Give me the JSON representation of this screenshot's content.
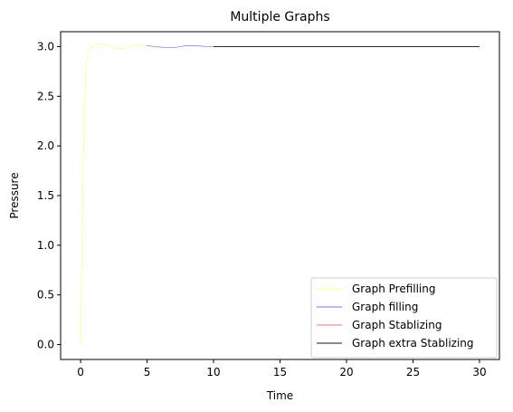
{
  "chart_data": {
    "type": "line",
    "title": "Multiple Graphs",
    "xlabel": "Time",
    "ylabel": "Pressure",
    "xlim": [
      -1.5,
      31.5
    ],
    "ylim": [
      -0.15,
      3.15
    ],
    "x_ticks": [
      0,
      5,
      10,
      15,
      20,
      25,
      30
    ],
    "x_tick_labels": [
      "0",
      "5",
      "10",
      "15",
      "20",
      "25",
      "30"
    ],
    "y_ticks": [
      0.0,
      0.5,
      1.0,
      1.5,
      2.0,
      2.5,
      3.0
    ],
    "y_tick_labels": [
      "0.0",
      "0.5",
      "1.0",
      "1.5",
      "2.0",
      "2.5",
      "3.0"
    ],
    "grid": false,
    "legend_position": "bottom-right",
    "series": [
      {
        "name": "Graph Prefilling",
        "color": "#ffff00",
        "x": [
          0.0,
          0.1,
          0.2,
          0.3,
          0.4,
          0.5,
          0.6,
          0.8,
          1.0,
          1.3,
          1.6,
          2.0,
          2.4,
          2.8,
          3.2,
          3.6,
          4.0,
          4.4,
          4.8,
          5.0
        ],
        "y": [
          0.0,
          0.9,
          1.8,
          2.4,
          2.75,
          2.9,
          2.95,
          2.99,
          3.01,
          3.03,
          3.03,
          3.02,
          2.99,
          2.98,
          2.98,
          3.0,
          3.01,
          3.02,
          3.01,
          3.01
        ]
      },
      {
        "name": "Graph filling",
        "color": "#0000ff",
        "x": [
          5.0,
          5.5,
          6.0,
          6.5,
          7.0,
          7.5,
          8.0,
          8.5,
          9.0,
          9.5,
          10.0
        ],
        "y": [
          3.01,
          3.0,
          2.995,
          2.99,
          2.99,
          3.0,
          3.01,
          3.01,
          3.005,
          3.0,
          3.0
        ]
      },
      {
        "name": "Graph Stablizing",
        "color": "#ff0000",
        "x": [
          10.0,
          30.0
        ],
        "y": [
          3.0,
          3.0
        ]
      },
      {
        "name": "Graph extra Stablizing",
        "color": "#000000",
        "x": [
          10.0,
          30.0
        ],
        "y": [
          3.0,
          3.0
        ]
      }
    ]
  }
}
